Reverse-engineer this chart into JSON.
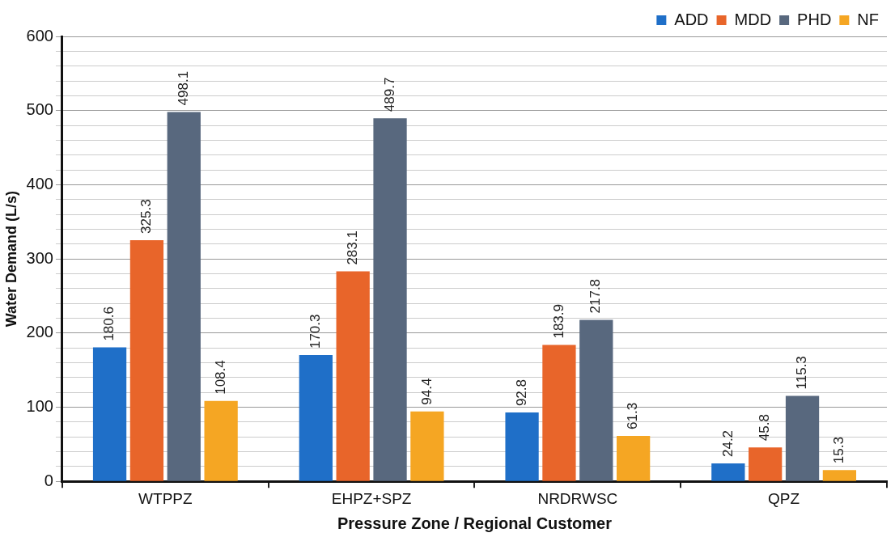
{
  "chart_data": {
    "type": "bar",
    "xlabel": "Pressure Zone / Regional Customer",
    "ylabel": "Water Demand (L/s)",
    "categories": [
      "WTPPZ",
      "EHPZ+SPZ",
      "NRDRWSC",
      "QPZ"
    ],
    "series": [
      {
        "name": "ADD",
        "color": "#1f6fc8",
        "values": [
          180.6,
          170.3,
          92.8,
          24.2
        ]
      },
      {
        "name": "MDD",
        "color": "#e8652a",
        "values": [
          325.3,
          283.1,
          183.9,
          45.8
        ]
      },
      {
        "name": "PHD",
        "color": "#58687e",
        "values": [
          498.1,
          489.7,
          217.8,
          115.3
        ]
      },
      {
        "name": "NF",
        "color": "#f5a623",
        "values": [
          108.4,
          94.4,
          61.3,
          15.3
        ]
      }
    ],
    "ylim": [
      0,
      600
    ],
    "yticks": [
      0,
      {
        "value": 20,
        "label": null
      },
      {
        "value": 40,
        "label": null
      },
      {
        "value": 60,
        "label": null
      },
      {
        "value": 80,
        "label": null
      },
      100,
      {
        "value": 120,
        "label": null
      },
      {
        "value": 140,
        "label": null
      },
      {
        "value": 160,
        "label": null
      },
      {
        "value": 180,
        "label": null
      },
      200,
      {
        "value": 220,
        "label": null
      },
      {
        "value": 240,
        "label": null
      },
      {
        "value": 260,
        "label": null
      },
      {
        "value": 280,
        "label": null
      },
      300,
      {
        "value": 320,
        "label": null
      },
      {
        "value": 340,
        "label": null
      },
      {
        "value": 360,
        "label": null
      },
      {
        "value": 380,
        "label": null
      },
      400,
      {
        "value": 420,
        "label": null
      },
      {
        "value": 440,
        "label": null
      },
      {
        "value": 460,
        "label": null
      },
      {
        "value": 480,
        "label": null
      },
      500,
      {
        "value": 520,
        "label": null
      },
      {
        "value": 540,
        "label": null
      },
      {
        "value": 560,
        "label": null
      },
      {
        "value": 580,
        "label": null
      },
      600
    ],
    "grid": "y",
    "legend": "top right",
    "data_labels": true
  }
}
